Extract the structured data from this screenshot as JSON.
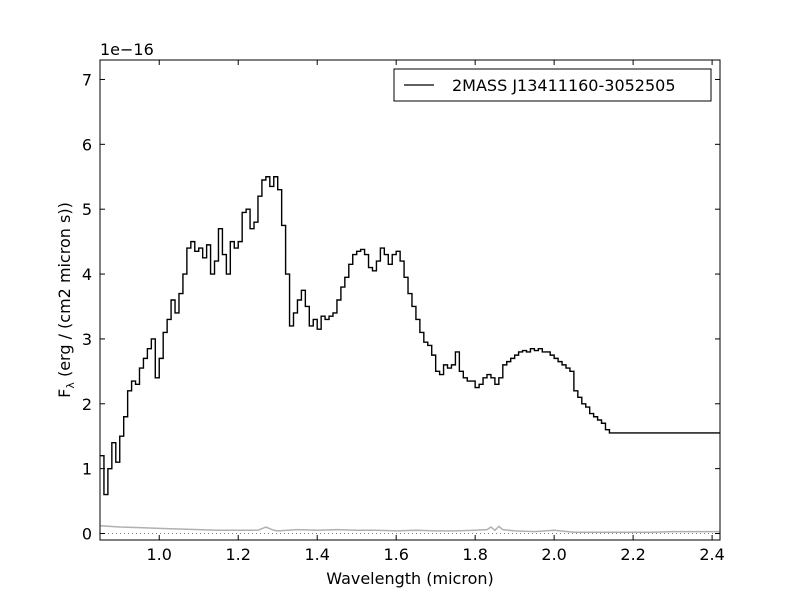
{
  "chart_data": {
    "type": "line",
    "title": "",
    "xlabel": "Wavelength (micron)",
    "ylabel": "F",
    "ylabel_subscript": "λ",
    "ylabel_units": " (erg / (cm2 micron s))",
    "y_offset_text": "1e−16",
    "xlim": [
      0.85,
      2.42
    ],
    "ylim": [
      -0.1,
      7.3
    ],
    "x_ticks": [
      1.0,
      1.2,
      1.4,
      1.6,
      1.8,
      2.0,
      2.2,
      2.4
    ],
    "x_tick_labels": [
      "1.0",
      "1.2",
      "1.4",
      "1.6",
      "1.8",
      "2.0",
      "2.2",
      "2.4"
    ],
    "y_ticks": [
      0,
      1,
      2,
      3,
      4,
      5,
      6,
      7
    ],
    "y_tick_labels": [
      "0",
      "1",
      "2",
      "3",
      "4",
      "5",
      "6",
      "7"
    ],
    "grid": false,
    "legend_position": "top-right",
    "series": [
      {
        "name": "2MASS J13411160-3052505",
        "color": "#000000",
        "style": "steps",
        "x": [
          0.85,
          0.86,
          0.87,
          0.88,
          0.89,
          0.9,
          0.91,
          0.92,
          0.93,
          0.94,
          0.95,
          0.96,
          0.97,
          0.98,
          0.99,
          1.0,
          1.01,
          1.02,
          1.03,
          1.04,
          1.05,
          1.06,
          1.07,
          1.08,
          1.09,
          1.1,
          1.11,
          1.12,
          1.13,
          1.14,
          1.15,
          1.16,
          1.17,
          1.18,
          1.19,
          1.2,
          1.21,
          1.22,
          1.23,
          1.24,
          1.25,
          1.26,
          1.27,
          1.28,
          1.29,
          1.3,
          1.31,
          1.32,
          1.33,
          1.34,
          1.35,
          1.36,
          1.37,
          1.38,
          1.39,
          1.4,
          1.41,
          1.42,
          1.43,
          1.44,
          1.45,
          1.46,
          1.47,
          1.48,
          1.49,
          1.5,
          1.51,
          1.52,
          1.53,
          1.54,
          1.55,
          1.56,
          1.57,
          1.58,
          1.59,
          1.6,
          1.61,
          1.62,
          1.63,
          1.64,
          1.65,
          1.66,
          1.67,
          1.68,
          1.69,
          1.7,
          1.71,
          1.72,
          1.73,
          1.74,
          1.75,
          1.76,
          1.77,
          1.78,
          1.79,
          1.8,
          1.81,
          1.82,
          1.83,
          1.84,
          1.85,
          1.86,
          1.87,
          1.88,
          1.89,
          1.9,
          1.91,
          1.92,
          1.93,
          1.94,
          1.95,
          1.96,
          1.97,
          1.98,
          1.99,
          2.0,
          2.01,
          2.02,
          2.03,
          2.04,
          2.05,
          2.06,
          2.07,
          2.08,
          2.09,
          2.1,
          2.11,
          2.12,
          2.13,
          2.14,
          2.15,
          2.16,
          2.17,
          2.18,
          2.19,
          2.2,
          2.21,
          2.22,
          2.23,
          2.24,
          2.25,
          2.26,
          2.27,
          2.28,
          2.29,
          2.3,
          2.31,
          2.32,
          2.33,
          2.34,
          2.35,
          2.36,
          2.37,
          2.38,
          2.39,
          2.4,
          2.41,
          2.42
        ],
        "values": [
          1.2,
          0.6,
          1.0,
          1.4,
          1.1,
          1.5,
          1.8,
          2.2,
          2.35,
          2.3,
          2.55,
          2.7,
          2.85,
          3.0,
          2.4,
          2.7,
          3.1,
          3.3,
          3.6,
          3.4,
          3.7,
          4.0,
          4.4,
          4.5,
          4.35,
          4.4,
          4.25,
          4.45,
          4.0,
          4.2,
          4.7,
          4.3,
          4.0,
          4.5,
          4.4,
          4.5,
          4.95,
          5.0,
          4.7,
          4.8,
          5.2,
          5.45,
          5.5,
          5.35,
          5.5,
          5.3,
          4.75,
          4.0,
          3.2,
          3.4,
          3.6,
          3.75,
          3.5,
          3.2,
          3.3,
          3.15,
          3.35,
          3.3,
          3.35,
          3.4,
          3.6,
          3.8,
          3.95,
          4.15,
          4.3,
          4.35,
          4.38,
          4.3,
          4.1,
          4.05,
          4.2,
          4.4,
          4.3,
          4.15,
          4.3,
          4.35,
          4.2,
          3.95,
          3.7,
          3.5,
          3.3,
          3.1,
          2.95,
          2.9,
          2.75,
          2.5,
          2.45,
          2.6,
          2.55,
          2.6,
          2.8,
          2.5,
          2.4,
          2.35,
          2.35,
          2.25,
          2.3,
          2.4,
          2.45,
          2.4,
          2.3,
          2.4,
          2.6,
          2.65,
          2.7,
          2.75,
          2.8,
          2.82,
          2.8,
          2.85,
          2.82,
          2.85,
          2.8,
          2.8,
          2.75,
          2.7,
          2.65,
          2.6,
          2.55,
          2.5,
          2.2,
          2.1,
          2.0,
          1.95,
          1.85,
          1.8,
          1.75,
          1.7,
          1.6,
          1.55,
          1.55,
          1.55,
          1.55,
          1.55,
          1.55,
          1.55,
          1.55,
          1.55,
          1.55,
          1.55,
          1.55,
          1.55,
          1.55,
          1.55,
          1.55,
          1.55,
          1.55,
          1.55,
          1.55,
          1.55,
          1.55,
          1.55,
          1.55,
          1.55,
          1.55,
          1.55,
          1.55,
          1.55
        ]
      },
      {
        "name": "",
        "color": "#b0b0b0",
        "style": "line",
        "x": [
          0.85,
          0.9,
          0.95,
          1.0,
          1.05,
          1.1,
          1.15,
          1.2,
          1.25,
          1.27,
          1.29,
          1.3,
          1.35,
          1.4,
          1.45,
          1.5,
          1.55,
          1.6,
          1.65,
          1.7,
          1.75,
          1.8,
          1.83,
          1.84,
          1.85,
          1.86,
          1.87,
          1.9,
          1.95,
          2.0,
          2.05,
          2.1,
          2.15,
          2.2,
          2.25,
          2.3,
          2.35,
          2.4,
          2.42
        ],
        "values": [
          0.12,
          0.1,
          0.09,
          0.08,
          0.07,
          0.06,
          0.05,
          0.05,
          0.05,
          0.1,
          0.05,
          0.04,
          0.06,
          0.05,
          0.06,
          0.05,
          0.05,
          0.04,
          0.05,
          0.04,
          0.04,
          0.05,
          0.06,
          0.1,
          0.05,
          0.11,
          0.06,
          0.04,
          0.03,
          0.05,
          0.02,
          0.02,
          0.02,
          0.02,
          0.02,
          0.03,
          0.03,
          0.03,
          0.03
        ]
      }
    ],
    "zero_line": {
      "value": 0,
      "style": "dotted",
      "color": "#808080"
    }
  }
}
